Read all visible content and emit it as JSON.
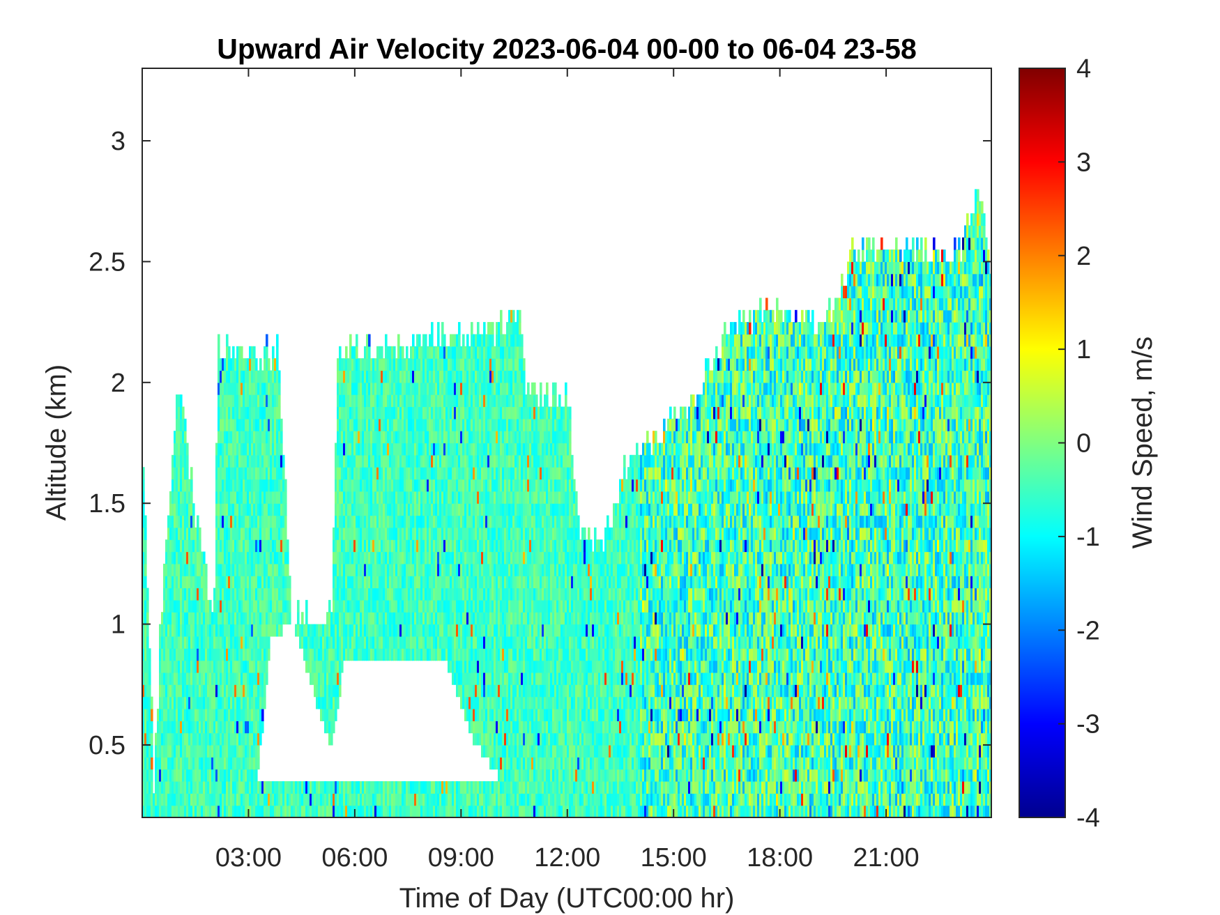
{
  "chart_data": {
    "type": "heatmap",
    "title": "Upward Air Velocity 2023-06-04 00-00 to 06-04 23-58",
    "xlabel": "Time of Day (UTC00:00 hr)",
    "ylabel": "Altitude (km)",
    "x_unit": "hours UTC",
    "xlim": [
      0,
      23.97
    ],
    "ylim": [
      0.2,
      3.3
    ],
    "x_ticks": [
      {
        "value": 3,
        "label": "03:00"
      },
      {
        "value": 6,
        "label": "06:00"
      },
      {
        "value": 9,
        "label": "09:00"
      },
      {
        "value": 12,
        "label": "12:00"
      },
      {
        "value": 15,
        "label": "15:00"
      },
      {
        "value": 18,
        "label": "18:00"
      },
      {
        "value": 21,
        "label": "21:00"
      }
    ],
    "y_ticks": [
      {
        "value": 0.5,
        "label": "0.5"
      },
      {
        "value": 1,
        "label": "1"
      },
      {
        "value": 1.5,
        "label": "1.5"
      },
      {
        "value": 2,
        "label": "2"
      },
      {
        "value": 2.5,
        "label": "2.5"
      },
      {
        "value": 3,
        "label": "3"
      }
    ],
    "colorbar": {
      "label": "Wind Speed, m/s",
      "colormap": "jet",
      "clim": [
        -4,
        4
      ],
      "ticks": [
        {
          "value": 4,
          "label": "4"
        },
        {
          "value": 3,
          "label": "3"
        },
        {
          "value": 2,
          "label": "2"
        },
        {
          "value": 1,
          "label": "1"
        },
        {
          "value": 0,
          "label": "0"
        },
        {
          "value": -1,
          "label": "-1"
        },
        {
          "value": -2,
          "label": "-2"
        },
        {
          "value": -3,
          "label": "-3"
        },
        {
          "value": -4,
          "label": "-4"
        }
      ],
      "stops": [
        "#00008f",
        "#0000ff",
        "#0080ff",
        "#00ffff",
        "#80ff80",
        "#ffff00",
        "#ff8000",
        "#ff0000",
        "#800000"
      ]
    },
    "grid": false,
    "data_top_altitude_km": [
      [
        0.0,
        1.7
      ],
      [
        0.3,
        0.3
      ],
      [
        0.5,
        1.0
      ],
      [
        1.0,
        2.0
      ],
      [
        1.5,
        1.4
      ],
      [
        2.0,
        1.0
      ],
      [
        2.1,
        2.1
      ],
      [
        3.8,
        2.1
      ],
      [
        4.2,
        1.0
      ],
      [
        5.3,
        1.0
      ],
      [
        5.5,
        2.1
      ],
      [
        10.0,
        2.2
      ],
      [
        10.6,
        2.3
      ],
      [
        10.8,
        1.95
      ],
      [
        12.0,
        1.9
      ],
      [
        12.3,
        1.4
      ],
      [
        13.0,
        1.3
      ],
      [
        13.5,
        1.6
      ],
      [
        14.2,
        1.7
      ],
      [
        15.5,
        1.9
      ],
      [
        16.5,
        2.2
      ],
      [
        18.0,
        2.3
      ],
      [
        19.2,
        2.2
      ],
      [
        20.0,
        2.5
      ],
      [
        21.0,
        2.55
      ],
      [
        23.0,
        2.5
      ],
      [
        23.6,
        2.8
      ],
      [
        23.97,
        2.4
      ]
    ],
    "data_bottom_gap_km": [
      [
        0.0,
        0.2
      ],
      [
        2.8,
        0.2
      ],
      [
        3.2,
        0.3
      ],
      [
        3.6,
        0.9
      ],
      [
        4.2,
        1.0
      ],
      [
        5.3,
        0.45
      ],
      [
        5.7,
        0.85
      ],
      [
        6.5,
        0.8
      ],
      [
        7.0,
        0.85
      ],
      [
        8.5,
        0.85
      ],
      [
        9.3,
        0.5
      ],
      [
        10.0,
        0.35
      ],
      [
        11.0,
        0.2
      ],
      [
        23.97,
        0.2
      ]
    ]
  }
}
